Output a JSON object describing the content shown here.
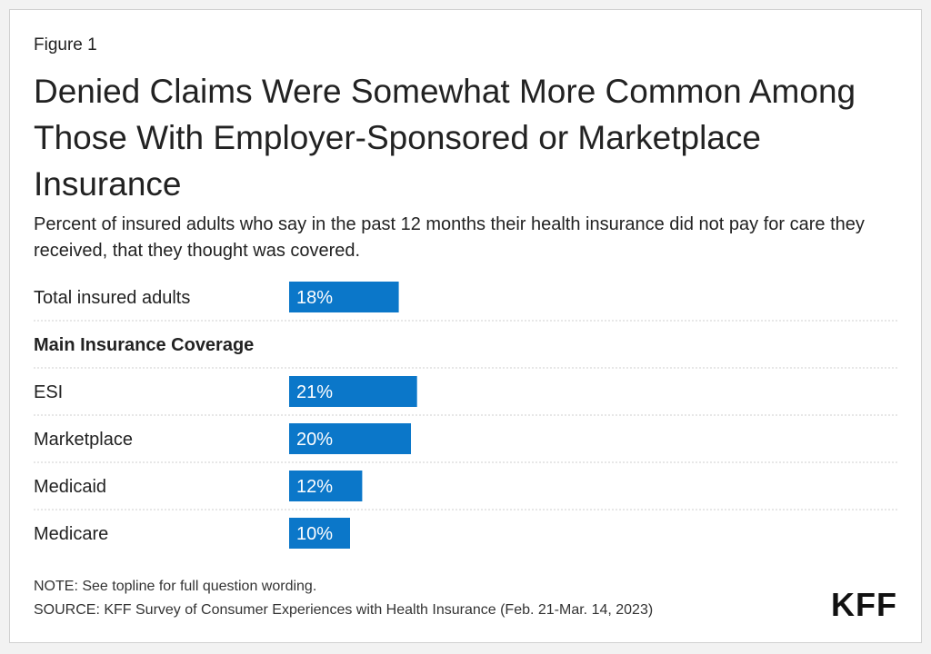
{
  "figure_label": "Figure 1",
  "title": "Denied Claims Were Somewhat More Common Among Those With Employer-Sponsored or Marketplace Insurance",
  "subtitle": "Percent of insured adults who say in the past 12 months their health insurance did not pay for care they received, that they thought was covered.",
  "note": "NOTE: See topline for full question wording.",
  "source": "SOURCE: KFF Survey of Consumer Experiences with Health Insurance (Feb. 21-Mar. 14, 2023)",
  "logo": "KFF",
  "colors": {
    "bar": "#0b77c9",
    "bar_label": "#ffffff",
    "divider": "#cfcfcf"
  },
  "chart_data": {
    "type": "bar",
    "orientation": "horizontal",
    "rows": [
      {
        "kind": "bar",
        "label": "Total insured adults",
        "value": 18,
        "display": "18%"
      },
      {
        "kind": "header",
        "label": "Main Insurance Coverage"
      },
      {
        "kind": "bar",
        "label": "ESI",
        "value": 21,
        "display": "21%"
      },
      {
        "kind": "bar",
        "label": "Marketplace",
        "value": 20,
        "display": "20%"
      },
      {
        "kind": "bar",
        "label": "Medicaid",
        "value": 12,
        "display": "12%"
      },
      {
        "kind": "bar",
        "label": "Medicare",
        "value": 10,
        "display": "10%"
      }
    ],
    "xlim": [
      0,
      100
    ],
    "grid": false
  }
}
